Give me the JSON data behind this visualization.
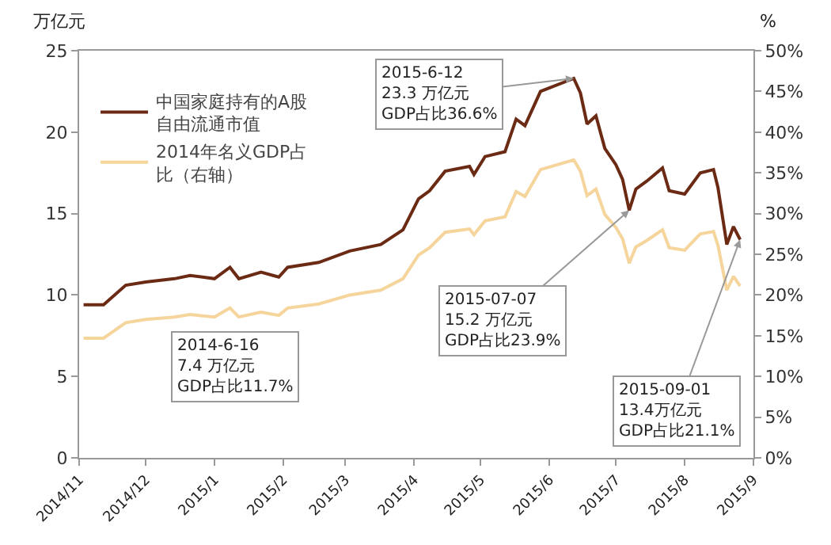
{
  "chart_data": {
    "type": "line",
    "ylabel": "万亿元",
    "y2label": "%",
    "x": [
      "2014-11-03",
      "2014-11-12",
      "2014-11-22",
      "2014-12-01",
      "2014-12-14",
      "2014-12-21",
      "2015-01-01",
      "2015-01-08",
      "2015-01-12",
      "2015-01-22",
      "2015-01-30",
      "2015-02-03",
      "2015-02-17",
      "2015-03-03",
      "2015-03-17",
      "2015-03-27",
      "2015-04-03",
      "2015-04-08",
      "2015-04-15",
      "2015-04-26",
      "2015-04-28",
      "2015-05-03",
      "2015-05-12",
      "2015-05-17",
      "2015-05-21",
      "2015-05-28",
      "2015-06-12",
      "2015-06-15",
      "2015-06-18",
      "2015-06-22",
      "2015-06-26",
      "2015-07-01",
      "2015-07-04",
      "2015-07-07",
      "2015-07-10",
      "2015-07-15",
      "2015-07-22",
      "2015-07-25",
      "2015-08-01",
      "2015-08-08",
      "2015-08-14",
      "2015-08-16",
      "2015-08-20",
      "2015-08-23",
      "2015-08-26"
    ],
    "series": [
      {
        "name": "中国家庭持有的A股自由流通市值",
        "color": "#6b2a14",
        "values": [
          9.4,
          9.4,
          10.6,
          10.8,
          11.0,
          11.2,
          11.0,
          11.7,
          11.0,
          11.4,
          11.1,
          11.7,
          12.0,
          12.7,
          13.1,
          14.0,
          15.9,
          16.4,
          17.6,
          17.9,
          17.4,
          18.5,
          18.8,
          20.8,
          20.4,
          22.5,
          23.3,
          22.4,
          20.5,
          21.0,
          19.0,
          18.0,
          17.1,
          15.2,
          16.5,
          17.0,
          17.8,
          16.4,
          16.2,
          17.5,
          17.7,
          16.6,
          13.1,
          14.2,
          13.4
        ]
      },
      {
        "name": "2014年名义GDP占比（右轴）",
        "color": "#f5d59b",
        "axis": "y2",
        "values": [
          14.7,
          14.7,
          16.6,
          17.0,
          17.3,
          17.6,
          17.3,
          18.4,
          17.3,
          17.9,
          17.5,
          18.4,
          18.9,
          20.0,
          20.6,
          22.0,
          24.9,
          25.8,
          27.7,
          28.1,
          27.4,
          29.1,
          29.6,
          32.7,
          32.1,
          35.4,
          36.6,
          35.2,
          32.2,
          33.0,
          29.9,
          28.3,
          26.9,
          23.9,
          25.9,
          26.7,
          28.0,
          25.8,
          25.5,
          27.5,
          27.8,
          26.1,
          20.6,
          22.3,
          21.1
        ]
      }
    ],
    "xlim": [
      "2014-11-01",
      "2015-09-01"
    ],
    "xticks": [
      {
        "value": "2014-11-01",
        "label": "2014/11"
      },
      {
        "value": "2014-12-01",
        "label": "2014/12"
      },
      {
        "value": "2015-01-01",
        "label": "2015/1"
      },
      {
        "value": "2015-02-01",
        "label": "2015/2"
      },
      {
        "value": "2015-03-01",
        "label": "2015/3"
      },
      {
        "value": "2015-04-01",
        "label": "2015/4"
      },
      {
        "value": "2015-05-01",
        "label": "2015/5"
      },
      {
        "value": "2015-06-01",
        "label": "2015/6"
      },
      {
        "value": "2015-07-01",
        "label": "2015/7"
      },
      {
        "value": "2015-08-01",
        "label": "2015/8"
      },
      {
        "value": "2015-09-01",
        "label": "2015/9"
      }
    ],
    "ylim": [
      0,
      25
    ],
    "yticks": [
      0,
      5,
      10,
      15,
      20,
      25
    ],
    "y2lim": [
      0,
      50
    ],
    "y2ticks": [
      {
        "value": 0,
        "label": "0%"
      },
      {
        "value": 5,
        "label": "5%"
      },
      {
        "value": 10,
        "label": "10%"
      },
      {
        "value": 15,
        "label": "15%"
      },
      {
        "value": 20,
        "label": "20%"
      },
      {
        "value": 25,
        "label": "25%"
      },
      {
        "value": 30,
        "label": "30%"
      },
      {
        "value": 35,
        "label": "35%"
      },
      {
        "value": 40,
        "label": "40%"
      },
      {
        "value": 45,
        "label": "45%"
      },
      {
        "value": 50,
        "label": "50%"
      }
    ],
    "annotations": [
      {
        "text": "2015-6-12\n23.3 万亿元\nGDP占比36.6%",
        "x": "2015-06-12",
        "y": 23.3
      },
      {
        "text": "2015-07-07\n15.2 万亿元\nGDP占比23.9%",
        "x": "2015-07-07",
        "y": 15.2
      },
      {
        "text": "2015-09-01\n13.4万亿元\nGDP占比21.1%",
        "x": "2015-08-26",
        "y": 13.4
      },
      "2014-6-16\n7.4 万亿元\nGDP占比11.7%"
    ],
    "legend": "top left",
    "marker": "none",
    "line_style": "solid"
  }
}
